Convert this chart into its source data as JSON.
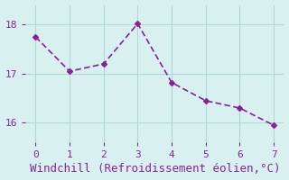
{
  "x": [
    0,
    1,
    2,
    3,
    4,
    5,
    6,
    7
  ],
  "y": [
    17.75,
    17.05,
    17.2,
    18.02,
    16.82,
    16.45,
    16.3,
    15.95
  ],
  "line_color": "#882299",
  "marker": "D",
  "marker_size": 3,
  "bg_color": "#d8f0f0",
  "grid_color": "#b0d8d8",
  "xlabel": "Windchill (Refroidissement éolien,°C)",
  "xlabel_color": "#882299",
  "tick_color": "#882299",
  "ylabel_ticks": [
    16,
    17,
    18
  ],
  "xlim": [
    -0.3,
    7.3
  ],
  "ylim": [
    15.6,
    18.4
  ],
  "xlabel_fontsize": 9,
  "tick_fontsize": 8
}
